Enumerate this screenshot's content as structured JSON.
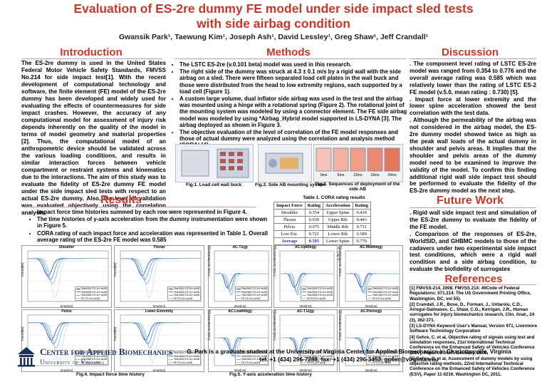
{
  "title": {
    "line1": "Evaluation of ES-2re dummy FE model under side impact sled tests",
    "line2": "with side airbag condition"
  },
  "authors": "Gwansik Park¹, Taewung Kim¹, Joseph Ash¹, David Lessley¹, Greg Shaw¹, Jeff Crandall¹",
  "sections": {
    "introduction": "Introduction",
    "methods": "Methods",
    "discussion": "Discussion",
    "results": "Results",
    "future_work": "Future Work",
    "references": "References"
  },
  "introduction_text": "The ES-2re dummy is used in the United States Federal Motor Vehicle Safety Standards, FMVSS No.214 for side impact test[1]. With the recent development of computational technology and software, the finite element (FE) model of the ES-2re dummy has been developed and widely used for evaluating the effects of countermeasures for side impact crashes. However, the accuracy of any computational model for assessment of injury risk depends inherently on the quality of the model in terms of model geometry and material properties [2]. Thus, the computational model of an anthropometric device should be validated across the various loading conditions, and results in similar interaction forces between vehicle compartment or restraint systems and kinematics due to the interactions. The aim of this study was to evaluate the fidelity of ES-2re dummy FE model under the side impact sled tests with respect to an actual ES-2re dummy. Also, the level of validation was evaluated objectively using the correlation analysis.",
  "methods_bullets": [
    "The LSTC ES-2re (v.0.101 beta) model was used in this research.",
    "The right side of the dummy was struck at 4.3 ± 0.1 m/s by a rigid wall with the side airbag on a sled. There were fifteen separated load cell plates in the wall buck and those were distributed from the head to low extremity regions, each supported by a load cell (Figure 1).",
    "A custom large volume, dual inflator side airbag was used in the test and the airbag was mounted using a hinge with a rotational spring (Figure 2). The rotational joint of the mounting system was modeled by using a connector element. The FE side airbag model was modeled by using *Airbag_Hybrid model supported in LS-DYNA [3]. The airbag deployed as shown in Figure 3.",
    "The objective evaluation of the level of correlation of the FE model responses and those of actual dummy were analyzed using the correlation and analysis method (CORA) [4]."
  ],
  "figures": {
    "fig1": "Fig.1. Load cell wall buck",
    "fig2": "Fig.2. Side AB mounting system",
    "fig3": "Fig.3. Sequences of deployment of the side AB",
    "fig3_times": [
      "0ms",
      "6ms",
      "12ms",
      "18ms",
      "24ms"
    ],
    "fig4": "Fig.4. Impact force time history",
    "fig5": "Fig.5. Y-axis acceleration time history"
  },
  "results_bullets": [
    "Impact force time histories summed by each row were represented in Figure 4.",
    "The time histories of y-axis acceleration from the dummy instrumentation were shown in Figure 5.",
    "CORA rating of each impact force and acceleration was represented in Table 1. Overall average rating of the ES-2re FE model was 0.585"
  ],
  "table1": {
    "caption": "Table 1. CORA rating results",
    "headers": [
      "Impact Force",
      "Rating",
      "Acceleration",
      "Rating"
    ],
    "rows": [
      [
        "Shoulder",
        "0.354",
        "Upper Spine",
        "0.439"
      ],
      [
        "Thorax",
        "0.630",
        "Upper Rib",
        "0.443"
      ],
      [
        "Pelvis",
        "0.675",
        "Middle Rib",
        "0.711"
      ],
      [
        "Low Ext.",
        "0.721",
        "Lower Rib",
        "0.589"
      ],
      [
        "Average",
        "0.595",
        "Lower Spine",
        "0.776"
      ],
      [
        "",
        "",
        "Pelvis",
        "0.513"
      ],
      [
        "",
        "",
        "Average",
        "0.579"
      ]
    ]
  },
  "force_charts": [
    {
      "title": "Shoulder",
      "ylabel": "Force[kN]",
      "xlabel": "time[ms]"
    },
    {
      "title": "Thorax",
      "ylabel": "Force[kN]",
      "xlabel": "time[ms]"
    },
    {
      "title": "Pelvis",
      "ylabel": "Force[kN]",
      "xlabel": "time[ms]"
    },
    {
      "title": "Lower Extremity",
      "ylabel": "Force[kN]",
      "xlabel": "time[ms]"
    }
  ],
  "accel_charts": [
    {
      "title": "AC-T1(g)",
      "ylabel": "Y-axis acceleration(g)",
      "xlabel": "time[ms]"
    },
    {
      "title": "AC-UpRib(g)",
      "ylabel": "Y-axis acceleration(g)",
      "xlabel": "time[ms]"
    },
    {
      "title": "AC-MidRib(g)",
      "ylabel": "Y-axis acceleration(g)",
      "xlabel": "time[ms]"
    },
    {
      "title": "AC-LowRib(g)",
      "ylabel": "Y-axis acceleration(g)",
      "xlabel": "time[ms]"
    },
    {
      "title": "AC-T12(g)",
      "ylabel": "Y-axis acceleration(g)",
      "xlabel": "time[ms]"
    },
    {
      "title": "AC-Pelvis(g)",
      "ylabel": "Y-axis acceleration(g)",
      "xlabel": "time[ms]"
    }
  ],
  "legend_entries": [
    "Test1564 ES-2re w/AB",
    "Test1565 ES-2re w/AB",
    "Test1566 ES-2re w/AB",
    "FE ES-2re w/AB"
  ],
  "series_colors": [
    "#1f3fbf",
    "#3b8fd0",
    "#7fb8e0",
    "#c0c0c0"
  ],
  "discussion_items": [
    ". The component level rating of LSTC ES-2re model was ranged from 0.354 to 0.776 and the overall average rating was 0.585 which was relatively lower than the rating of LSTC ES-2 FE model (v.5.0, mean rating : 0.730) [5].",
    ". Impact force at lower extremity and the lower spine acceleration showed the best correlation with the test data.",
    ". Although the permeability of the airbag was not considered in the airbag model, the ES-2re dummy model showed twice as high as the peak wall loads of the actual dummy in shoulder and pelvis areas. It implies that the shoulder and pelvis areas of the dummy model need to be examined to improve the validity of the model. To confirm this finding additional rigid wall side impact test should be performed to evaluate the fidelity of the ES-2re dummy model as the next step."
  ],
  "future_items": [
    ". Rigid wall side impact test and simulation of the ES-2re dummy to evaluate the fidelity of the FE model.",
    ". Comparison of the responses of ES-2re, WorldSID, and GHBMC models to those of the cadavers under two experimental side impact test conditions, which were a rigid wall condition and a side airbag condition, to evaluate the biofidelity of surrogates"
  ],
  "references_items": [
    "[1] FMVSS-214, 2008. FMVSS 214: 49Code of Federal Regulations: 571.214. The US Government Printing Office, Washington, DC, vol 55).",
    "[2] Crandall, J.R., Bose, D., Forman, J., Untaroiu, C.D., Arregui-Dalmases, C., Shaw, C.G., Kerrigan, J.R., Human surrogates for injury biomechanics research, Clin. Anat., 24 (3), 362-371.",
    "[3] LS-DYNA Keyword User's Manual, Version 971, Livermore Software Technology Corporation",
    "[4] Gehre, C. et al, Objective rating of signals using test and simulation responses, 21st International Technical Conference on the Enhanced Safety of Vehicles Conference (ESV), Paper 09-0407, Germany, 2009.",
    "[5] Gehre, C. et al, Assessment of dummy models by using objective rating methods, 22nd International Technical Conference on the Enhanced Safety of Vehicles Conference (ESV), Paper 11-0216, Washington DC, 2011."
  ],
  "footer": {
    "line1": "G. Park is a graduate student at the University of Virginia Center for Applied Biomechanics in Charlottesville, Virginia",
    "line2": "tel. +1 (434) 296-7288, fax: +1 (434) 296-3453, gp6xr@virginia.edu"
  },
  "logo": {
    "line1": "Center for Applied Biomechanics",
    "line2": "University of Virginia"
  }
}
